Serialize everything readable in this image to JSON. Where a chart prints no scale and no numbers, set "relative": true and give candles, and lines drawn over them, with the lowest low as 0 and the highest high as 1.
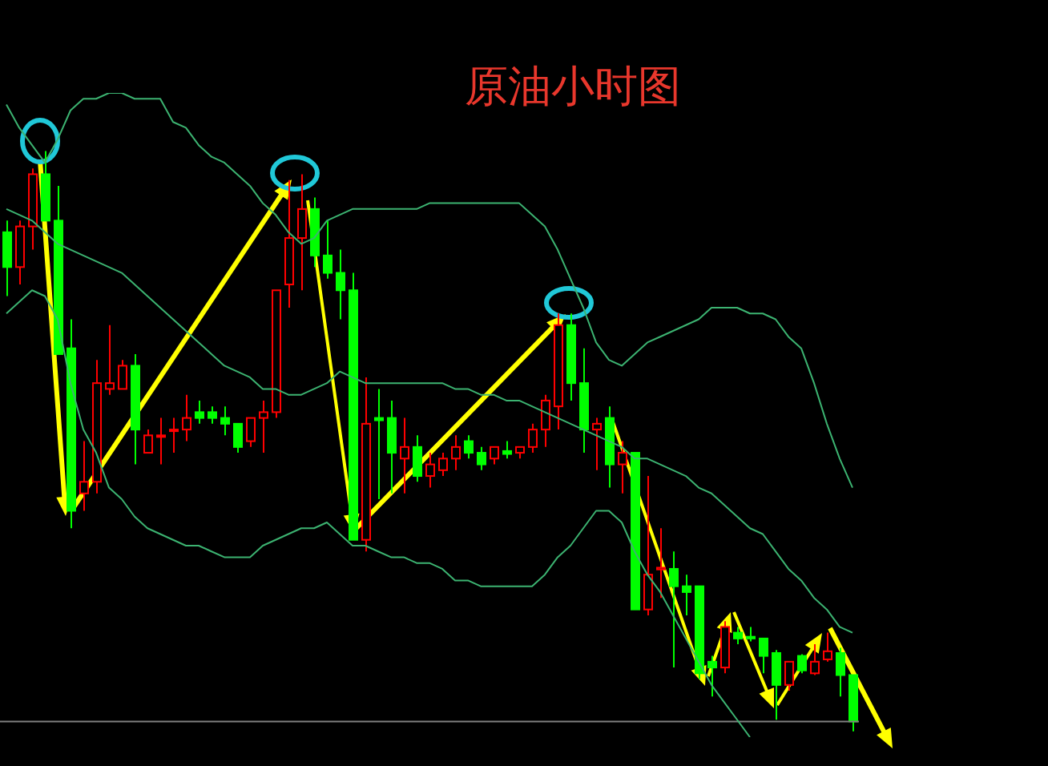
{
  "chart_data": {
    "type": "candlestick",
    "title": "原油小时图",
    "relative": true,
    "categories": [
      null,
      null,
      null,
      null,
      null,
      null,
      null,
      null,
      null,
      null,
      null,
      null,
      null,
      null,
      null,
      null,
      null,
      null,
      null,
      null,
      null,
      null,
      null,
      null,
      null,
      null,
      null,
      null,
      null,
      null,
      null,
      null,
      null,
      null,
      null,
      null,
      null,
      null,
      null,
      null,
      null,
      null,
      null,
      null,
      null,
      null,
      null,
      null,
      null,
      null,
      null,
      null,
      null,
      null,
      null,
      null,
      null,
      null,
      null,
      null,
      null,
      null,
      null,
      null,
      null,
      null,
      null
    ],
    "ohlc": [
      [
        0.86,
        0.88,
        0.75,
        0.8
      ],
      [
        0.8,
        0.88,
        0.77,
        0.87
      ],
      [
        0.87,
        0.97,
        0.83,
        0.96
      ],
      [
        0.96,
        1.0,
        0.88,
        0.88
      ],
      [
        0.88,
        0.94,
        0.65,
        0.65
      ],
      [
        0.66,
        0.71,
        0.35,
        0.38
      ],
      [
        0.41,
        0.5,
        0.38,
        0.43
      ],
      [
        0.43,
        0.64,
        0.41,
        0.6
      ],
      [
        0.59,
        0.7,
        0.58,
        0.6
      ],
      [
        0.59,
        0.64,
        0.59,
        0.63
      ],
      [
        0.63,
        0.65,
        0.46,
        0.52
      ],
      [
        0.48,
        0.52,
        0.48,
        0.51
      ],
      [
        0.51,
        0.54,
        0.46,
        0.51
      ],
      [
        0.52,
        0.54,
        0.48,
        0.52
      ],
      [
        0.52,
        0.58,
        0.5,
        0.54
      ],
      [
        0.55,
        0.57,
        0.53,
        0.54
      ],
      [
        0.55,
        0.56,
        0.53,
        0.54
      ],
      [
        0.54,
        0.56,
        0.51,
        0.53
      ],
      [
        0.53,
        0.53,
        0.48,
        0.49
      ],
      [
        0.5,
        0.54,
        0.49,
        0.54
      ],
      [
        0.54,
        0.57,
        0.48,
        0.55
      ],
      [
        0.55,
        0.76,
        0.54,
        0.76
      ],
      [
        0.77,
        0.95,
        0.73,
        0.85
      ],
      [
        0.85,
        0.96,
        0.76,
        0.9
      ],
      [
        0.9,
        0.92,
        0.8,
        0.82
      ],
      [
        0.82,
        0.88,
        0.78,
        0.79
      ],
      [
        0.79,
        0.83,
        0.71,
        0.76
      ],
      [
        0.76,
        0.79,
        0.33,
        0.33
      ],
      [
        0.33,
        0.61,
        0.31,
        0.53
      ],
      [
        0.54,
        0.59,
        0.4,
        0.536
      ],
      [
        0.54,
        0.57,
        0.41,
        0.48
      ],
      [
        0.47,
        0.54,
        0.41,
        0.49
      ],
      [
        0.49,
        0.51,
        0.43,
        0.44
      ],
      [
        0.44,
        0.48,
        0.42,
        0.46
      ],
      [
        0.45,
        0.48,
        0.44,
        0.47
      ],
      [
        0.47,
        0.51,
        0.45,
        0.49
      ],
      [
        0.5,
        0.51,
        0.47,
        0.48
      ],
      [
        0.48,
        0.49,
        0.45,
        0.46
      ],
      [
        0.47,
        0.49,
        0.46,
        0.49
      ],
      [
        0.483,
        0.5,
        0.47,
        0.478
      ],
      [
        0.48,
        0.49,
        0.47,
        0.49
      ],
      [
        0.49,
        0.53,
        0.48,
        0.52
      ],
      [
        0.52,
        0.58,
        0.49,
        0.57
      ],
      [
        0.56,
        0.72,
        0.52,
        0.7
      ],
      [
        0.7,
        0.72,
        0.57,
        0.6
      ],
      [
        0.6,
        0.66,
        0.48,
        0.52
      ],
      [
        0.52,
        0.54,
        0.45,
        0.53
      ],
      [
        0.54,
        0.56,
        0.42,
        0.46
      ],
      [
        0.46,
        0.5,
        0.41,
        0.48
      ],
      [
        0.48,
        0.48,
        0.21,
        0.21
      ],
      [
        0.21,
        0.44,
        0.2,
        0.27
      ],
      [
        0.279,
        0.35,
        0.23,
        0.282
      ],
      [
        0.28,
        0.31,
        0.11,
        0.25
      ],
      [
        0.25,
        0.27,
        0.2,
        0.24
      ],
      [
        0.25,
        0.25,
        0.09,
        0.1
      ],
      [
        0.12,
        0.13,
        0.06,
        0.11
      ],
      [
        0.11,
        0.19,
        0.1,
        0.18
      ],
      [
        0.17,
        0.18,
        0.15,
        0.16
      ],
      [
        0.163,
        0.18,
        0.155,
        0.16
      ],
      [
        0.16,
        0.16,
        0.1,
        0.13
      ],
      [
        0.135,
        0.14,
        0.02,
        0.08
      ],
      [
        0.08,
        0.12,
        0.07,
        0.12
      ],
      [
        0.13,
        0.133,
        0.1,
        0.105
      ],
      [
        0.1,
        0.15,
        0.097,
        0.12
      ],
      [
        0.124,
        0.17,
        0.12,
        0.138
      ],
      [
        0.135,
        0.144,
        0.06,
        0.097
      ],
      [
        0.097,
        0.097,
        0,
        0.017
      ]
    ],
    "colors": [
      "#00ff00",
      "#ff0000",
      "#ff0000",
      "#00ff00",
      "#00ff00",
      "#00ff00",
      "#ff0000",
      "#ff0000",
      "#ff0000",
      "#ff0000",
      "#00ff00",
      "#ff0000",
      "#ff0000",
      "#ff0000",
      "#ff0000",
      "#00ff00",
      "#00ff00",
      "#00ff00",
      "#00ff00",
      "#ff0000",
      "#ff0000",
      "#ff0000",
      "#ff0000",
      "#ff0000",
      "#00ff00",
      "#00ff00",
      "#00ff00",
      "#00ff00",
      "#ff0000",
      "#00ff00",
      "#00ff00",
      "#ff0000",
      "#00ff00",
      "#ff0000",
      "#ff0000",
      "#ff0000",
      "#00ff00",
      "#00ff00",
      "#ff0000",
      "#00ff00",
      "#ff0000",
      "#ff0000",
      "#ff0000",
      "#ff0000",
      "#00ff00",
      "#00ff00",
      "#ff0000",
      "#00ff00",
      "#ff0000",
      "#00ff00",
      "#ff0000",
      "#ff0000",
      "#00ff00",
      "#00ff00",
      "#00ff00",
      "#00ff00",
      "#ff0000",
      "#00ff00",
      "#00ff00",
      "#00ff00",
      "#00ff00",
      "#ff0000",
      "#00ff00",
      "#ff0000",
      "#ff0000",
      "#00ff00",
      "#00ff00"
    ],
    "series": [
      {
        "type": "line",
        "color": "#3cb371",
        "values": [
          1.08,
          1.04,
          1.01,
          0.98,
          1.02,
          1.07,
          1.09,
          1.09,
          1.1,
          1.1,
          1.09,
          1.09,
          1.09,
          1.05,
          1.04,
          1.01,
          0.99,
          0.98,
          0.96,
          0.94,
          0.91,
          0.89,
          0.86,
          0.84,
          0.85,
          0.88,
          0.89,
          0.9,
          0.9,
          0.9,
          0.9,
          0.9,
          0.9,
          0.91,
          0.91,
          0.91,
          0.91,
          0.91,
          0.91,
          0.91,
          0.91,
          0.89,
          0.87,
          0.83,
          0.78,
          0.73,
          0.67,
          0.64,
          0.63,
          0.65,
          0.67,
          0.68,
          0.69,
          0.7,
          0.71,
          0.73,
          0.73,
          0.73,
          0.72,
          0.72,
          0.71,
          0.68,
          0.66,
          0.6,
          0.53,
          0.47,
          0.42
        ]
      },
      {
        "type": "line",
        "color": "#3cb371",
        "values": [
          0.9,
          0.89,
          0.88,
          0.86,
          0.84,
          0.83,
          0.82,
          0.81,
          0.8,
          0.79,
          0.77,
          0.75,
          0.73,
          0.71,
          0.69,
          0.67,
          0.65,
          0.63,
          0.62,
          0.61,
          0.59,
          0.59,
          0.58,
          0.58,
          0.59,
          0.6,
          0.62,
          0.61,
          0.6,
          0.6,
          0.6,
          0.6,
          0.6,
          0.6,
          0.6,
          0.59,
          0.59,
          0.58,
          0.58,
          0.57,
          0.57,
          0.56,
          0.55,
          0.54,
          0.53,
          0.52,
          0.51,
          0.5,
          0.49,
          0.47,
          0.47,
          0.46,
          0.45,
          0.44,
          0.42,
          0.41,
          0.39,
          0.37,
          0.35,
          0.34,
          0.31,
          0.28,
          0.26,
          0.23,
          0.21,
          0.18,
          0.17
        ]
      },
      {
        "type": "line",
        "color": "#3cb371",
        "values": [
          0.72,
          0.74,
          0.76,
          0.75,
          0.71,
          0.6,
          0.52,
          0.48,
          0.42,
          0.4,
          0.37,
          0.35,
          0.34,
          0.33,
          0.32,
          0.32,
          0.31,
          0.3,
          0.3,
          0.3,
          0.32,
          0.33,
          0.34,
          0.35,
          0.35,
          0.36,
          0.34,
          0.32,
          0.32,
          0.31,
          0.3,
          0.3,
          0.29,
          0.29,
          0.28,
          0.26,
          0.26,
          0.25,
          0.25,
          0.25,
          0.25,
          0.25,
          0.27,
          0.3,
          0.32,
          0.35,
          0.38,
          0.38,
          0.36,
          0.31,
          0.27,
          0.24,
          0.2,
          0.16,
          0.12,
          0.08,
          0.05,
          0.02,
          -0.01,
          null,
          null,
          null,
          null,
          null,
          null,
          null,
          null
        ]
      }
    ],
    "ref_lines": [
      {
        "axis": "y",
        "value": 0.017,
        "color": "#808080"
      }
    ]
  }
}
